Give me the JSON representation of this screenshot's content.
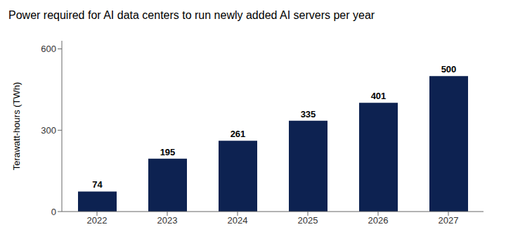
{
  "chart_data": {
    "type": "bar",
    "title": "Power required for AI data centers to run newly added AI servers per year",
    "ylabel": "Terawatt-hours (TWh)",
    "categories": [
      "2022",
      "2023",
      "2024",
      "2025",
      "2026",
      "2027"
    ],
    "values": [
      74,
      195,
      261,
      335,
      401,
      500
    ],
    "color": "#0d2251",
    "ylim": [
      0,
      630
    ],
    "yticks": [
      0,
      300,
      600
    ],
    "grid": false,
    "data_labels": true
  }
}
